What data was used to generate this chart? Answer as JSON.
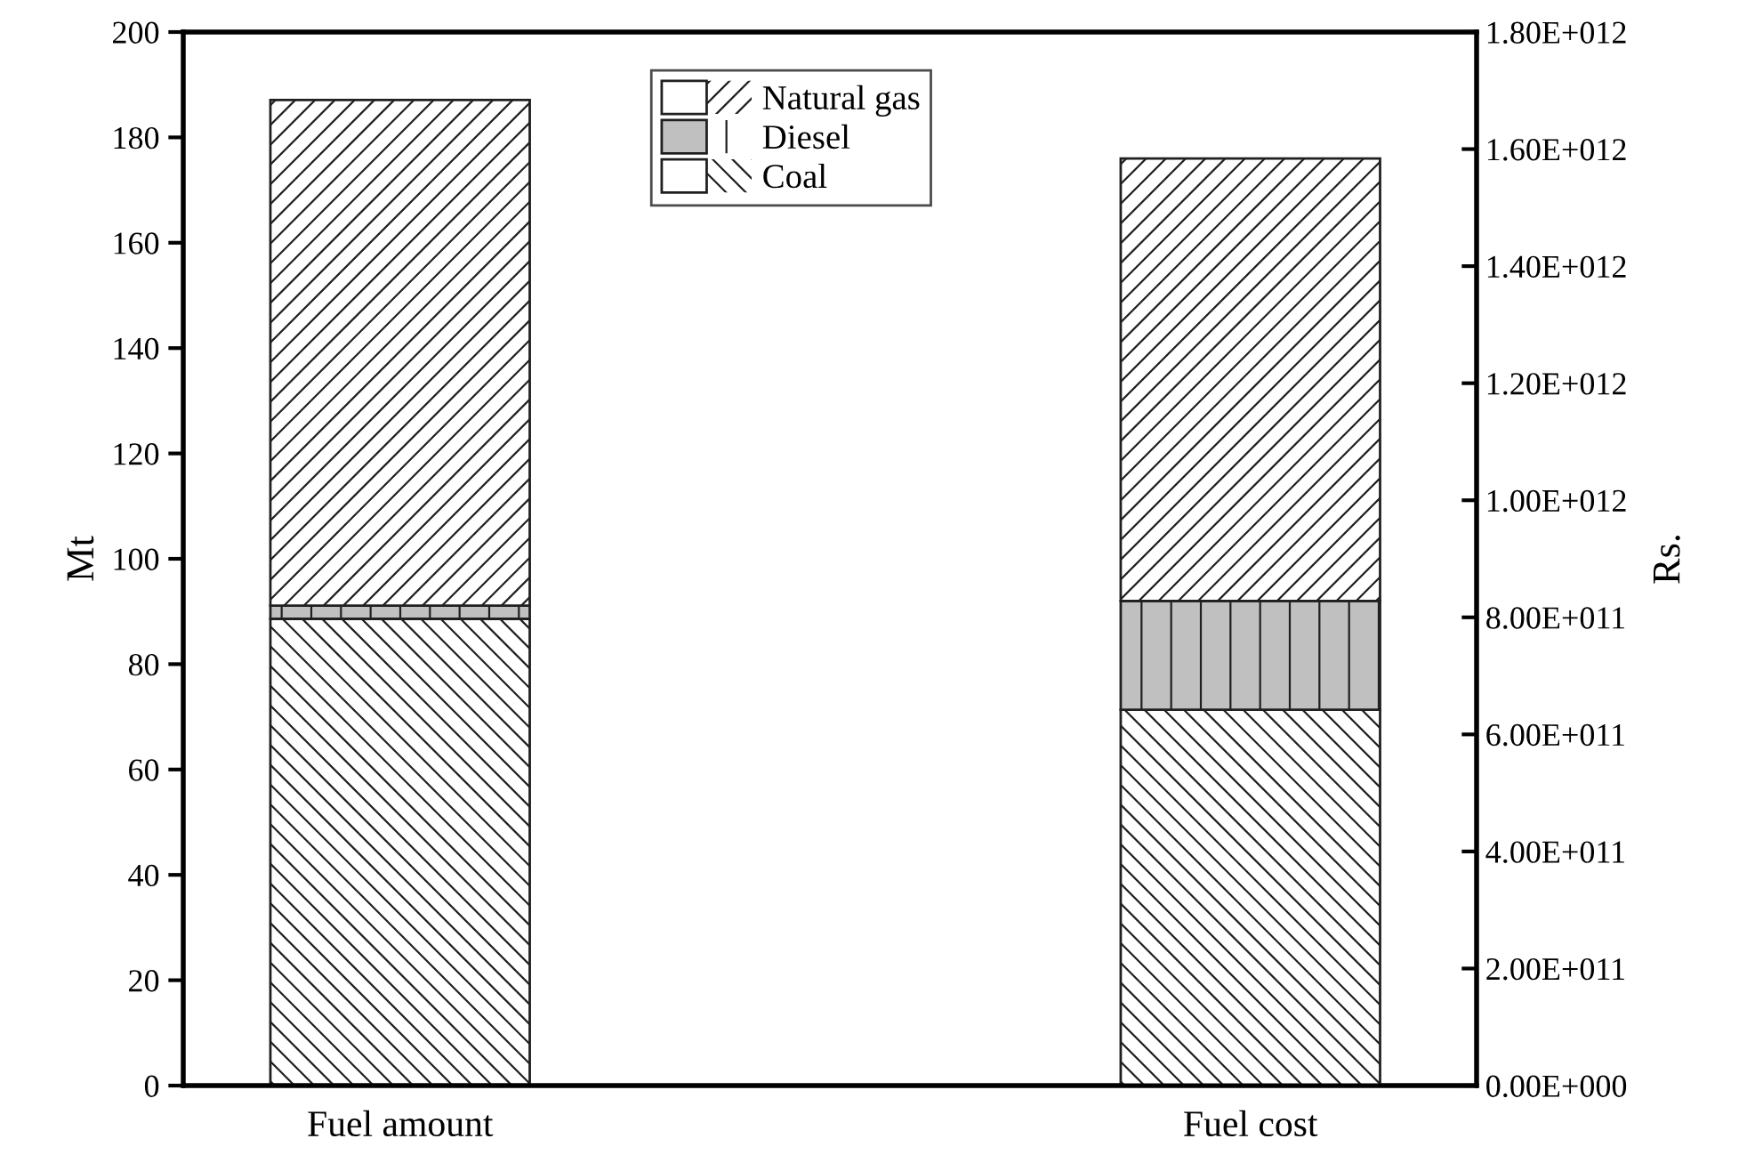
{
  "chart_data": {
    "type": "bar",
    "stacked": true,
    "ylabel": "Mt",
    "y2label": "Rs.",
    "categories": [
      "Fuel amount",
      "Fuel cost"
    ],
    "series": [
      {
        "name": "Coal",
        "color": "#ffffff",
        "values": [
          88.6,
          null
        ]
      },
      {
        "name": "Diesel",
        "color": "#c0c0c0",
        "values": [
          2.5,
          null
        ]
      },
      {
        "name": "Natural gas",
        "color": "#ffffff",
        "values": [
          96,
          null
        ]
      },
      {
        "color": "#ffffff",
        "axis": "y2",
        "values": [
          null,
          642000000000
        ]
      },
      {
        "color": "#c0c0c0",
        "axis": "y2",
        "values": [
          null,
          186000000000
        ]
      },
      {
        "color": "#ffffff",
        "axis": "y2",
        "values": [
          null,
          756000000000
        ]
      }
    ],
    "ylim": [
      0,
      200
    ],
    "yticks": [
      0,
      20,
      40,
      60,
      80,
      100,
      120,
      140,
      160,
      180,
      200
    ],
    "y2lim": [
      0,
      1800000000000
    ],
    "y2ticks": [
      {
        "value": 0,
        "label": "0.00E+000"
      },
      {
        "value": 200000000000,
        "label": "2.00E+011"
      },
      {
        "value": 400000000000,
        "label": "4.00E+011"
      },
      {
        "value": 600000000000,
        "label": "6.00E+011"
      },
      {
        "value": 800000000000,
        "label": "8.00E+011"
      },
      {
        "value": 1000000000000,
        "label": "1.00E+012"
      },
      {
        "value": 1200000000000,
        "label": "1.20E+012"
      },
      {
        "value": 1400000000000,
        "label": "1.40E+012"
      },
      {
        "value": 1600000000000,
        "label": "1.60E+012"
      },
      {
        "value": 1800000000000,
        "label": "1.80E+012"
      }
    ],
    "legend": "top",
    "grid": false
  }
}
